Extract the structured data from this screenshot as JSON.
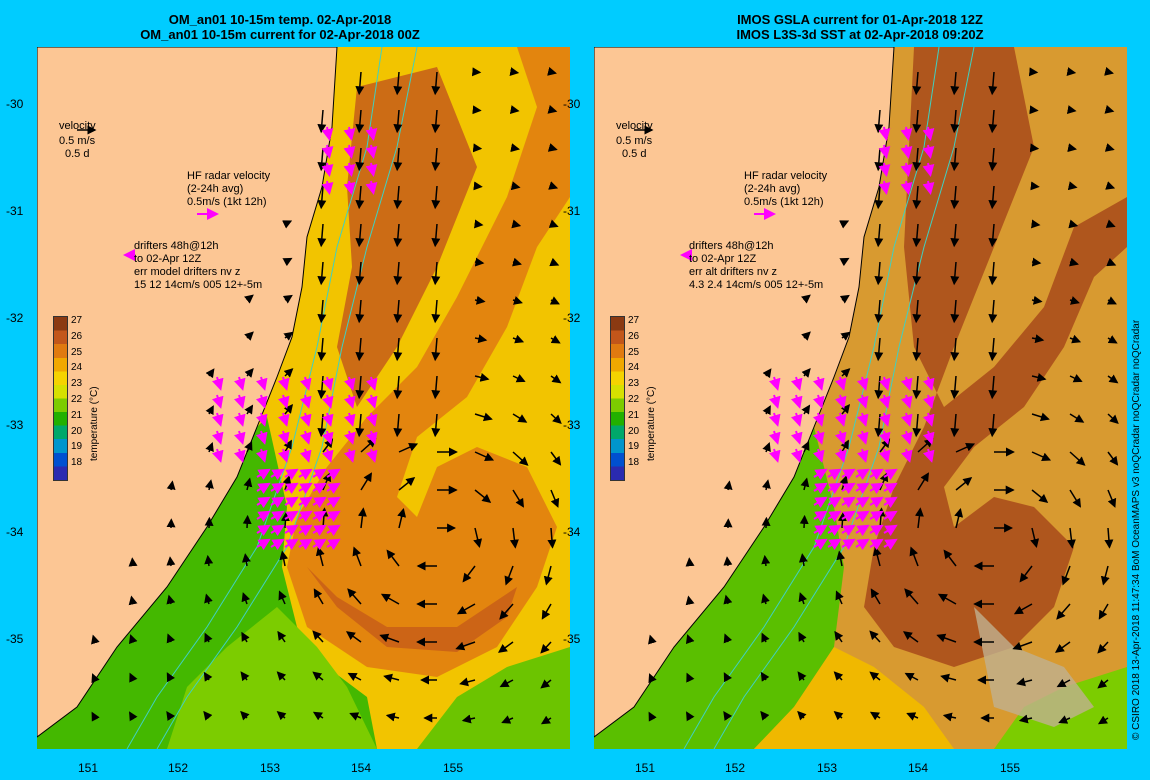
{
  "left": {
    "title1": "OM_an01 10-15m temp. 02-Apr-2018",
    "title2": "OM_an01 10-15m current for 02-Apr-2018 00Z",
    "velocity_label": "velocity",
    "velocity_scale": "0.5 m/s",
    "velocity_time": "0.5 d",
    "hf_label": "HF radar velocity",
    "hf_avg": "(2-24h avg)",
    "hf_scale": "0.5m/s (1kt 12h)",
    "drift1": "drifters 48h@12h",
    "drift2": "to 02-Apr 12Z",
    "drift3": "err model drifters nv z",
    "drift4": "15 12 14cm/s 005 12+-5m"
  },
  "right": {
    "title1": "IMOS GSLA current for 01-Apr-2018 12Z",
    "title2": "IMOS L3S-3d SST at 02-Apr-2018 09:20Z",
    "velocity_label": "velocity",
    "velocity_scale": "0.5 m/s",
    "velocity_time": "0.5 d",
    "hf_label": "HF radar velocity",
    "hf_avg": "(2-24h avg)",
    "hf_scale": "0.5m/s (1kt 12h)",
    "drift1": "drifters 48h@12h",
    "drift2": "to 02-Apr 12Z",
    "drift3": "err alt drifters nv z",
    "drift4": "4.3 2.4 14cm/s 005 12+-5m"
  },
  "y_ticks": [
    "-30",
    "-31",
    "-32",
    "-33",
    "-34",
    "-35"
  ],
  "x_ticks": [
    "151",
    "152",
    "153",
    "154",
    "155"
  ],
  "colorbar": {
    "title": "temperature (°C)",
    "ticks": [
      "27",
      "26",
      "25",
      "24",
      "23",
      "22",
      "21",
      "20",
      "19",
      "18"
    ],
    "colors": [
      "#8b3a12",
      "#c2561a",
      "#e07a10",
      "#f0a800",
      "#f5d300",
      "#d6e000",
      "#7ccc00",
      "#22b000",
      "#00a86a",
      "#0095cc",
      "#0050d0",
      "#2a2ab0"
    ]
  },
  "credit": "© CSIRO 2018   13-Apr-2018 11:47:34 BoM OceanMAPS v3 noQCradar noQCradar noQCradar",
  "colors": {
    "background": "#00ccff",
    "land": "#fcc694",
    "hf_radar": "#ff00ff",
    "contour": "#40d0c0"
  }
}
